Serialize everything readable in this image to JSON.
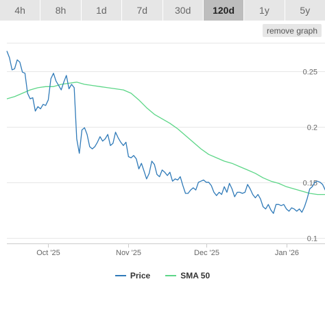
{
  "tabs": [
    {
      "label": "4h",
      "active": false
    },
    {
      "label": "8h",
      "active": false
    },
    {
      "label": "1d",
      "active": false
    },
    {
      "label": "7d",
      "active": false
    },
    {
      "label": "30d",
      "active": false
    },
    {
      "label": "120d",
      "active": true
    },
    {
      "label": "1y",
      "active": false
    },
    {
      "label": "5y",
      "active": false
    }
  ],
  "remove_graph_label": "remove graph",
  "chart_data": {
    "type": "line",
    "x_tick_labels": [
      "Oct '25",
      "Nov '25",
      "Dec '25",
      "Jan '26"
    ],
    "x_tick_dates": [
      "2025-10-01",
      "2025-11-01",
      "2025-12-01",
      "2026-01-01"
    ],
    "xlim": [
      "2025-09-15",
      "2026-01-13"
    ],
    "y_tick_labels": [
      "0.1",
      "0.15",
      "0.2",
      "0.25"
    ],
    "y_ticks": [
      0.1,
      0.15,
      0.2,
      0.25
    ],
    "ylim": [
      0.095,
      0.275
    ],
    "y_axis_side": "right",
    "grid": "horizontal",
    "legend_position": "bottom",
    "series": [
      {
        "name": "Price",
        "color": "#2f7ab8",
        "points": [
          [
            "2025-09-15",
            0.268
          ],
          [
            "2025-09-16",
            0.262
          ],
          [
            "2025-09-17",
            0.251
          ],
          [
            "2025-09-18",
            0.252
          ],
          [
            "2025-09-19",
            0.26
          ],
          [
            "2025-09-20",
            0.258
          ],
          [
            "2025-09-21",
            0.249
          ],
          [
            "2025-09-22",
            0.248
          ],
          [
            "2025-09-23",
            0.23
          ],
          [
            "2025-09-24",
            0.225
          ],
          [
            "2025-09-25",
            0.226
          ],
          [
            "2025-09-26",
            0.214
          ],
          [
            "2025-09-27",
            0.218
          ],
          [
            "2025-09-28",
            0.216
          ],
          [
            "2025-09-29",
            0.22
          ],
          [
            "2025-09-30",
            0.219
          ],
          [
            "2025-10-01",
            0.224
          ],
          [
            "2025-10-02",
            0.243
          ],
          [
            "2025-10-03",
            0.248
          ],
          [
            "2025-10-04",
            0.241
          ],
          [
            "2025-10-05",
            0.237
          ],
          [
            "2025-10-06",
            0.233
          ],
          [
            "2025-10-07",
            0.24
          ],
          [
            "2025-10-08",
            0.246
          ],
          [
            "2025-10-09",
            0.234
          ],
          [
            "2025-10-10",
            0.238
          ],
          [
            "2025-10-11",
            0.235
          ],
          [
            "2025-10-12",
            0.189
          ],
          [
            "2025-10-13",
            0.176
          ],
          [
            "2025-10-14",
            0.197
          ],
          [
            "2025-10-15",
            0.199
          ],
          [
            "2025-10-16",
            0.193
          ],
          [
            "2025-10-17",
            0.182
          ],
          [
            "2025-10-18",
            0.18
          ],
          [
            "2025-10-19",
            0.182
          ],
          [
            "2025-10-20",
            0.186
          ],
          [
            "2025-10-21",
            0.191
          ],
          [
            "2025-10-22",
            0.187
          ],
          [
            "2025-10-23",
            0.189
          ],
          [
            "2025-10-24",
            0.193
          ],
          [
            "2025-10-25",
            0.183
          ],
          [
            "2025-10-26",
            0.185
          ],
          [
            "2025-10-27",
            0.195
          ],
          [
            "2025-10-28",
            0.19
          ],
          [
            "2025-10-29",
            0.186
          ],
          [
            "2025-10-30",
            0.183
          ],
          [
            "2025-10-31",
            0.186
          ],
          [
            "2025-11-01",
            0.173
          ],
          [
            "2025-11-02",
            0.172
          ],
          [
            "2025-11-03",
            0.174
          ],
          [
            "2025-11-04",
            0.171
          ],
          [
            "2025-11-05",
            0.162
          ],
          [
            "2025-11-06",
            0.167
          ],
          [
            "2025-11-07",
            0.16
          ],
          [
            "2025-11-08",
            0.153
          ],
          [
            "2025-11-09",
            0.158
          ],
          [
            "2025-11-10",
            0.169
          ],
          [
            "2025-11-11",
            0.166
          ],
          [
            "2025-11-12",
            0.157
          ],
          [
            "2025-11-13",
            0.155
          ],
          [
            "2025-11-14",
            0.161
          ],
          [
            "2025-11-15",
            0.159
          ],
          [
            "2025-11-16",
            0.156
          ],
          [
            "2025-11-17",
            0.159
          ],
          [
            "2025-11-18",
            0.151
          ],
          [
            "2025-11-19",
            0.153
          ],
          [
            "2025-11-20",
            0.152
          ],
          [
            "2025-11-21",
            0.155
          ],
          [
            "2025-11-22",
            0.147
          ],
          [
            "2025-11-23",
            0.14
          ],
          [
            "2025-11-24",
            0.14
          ],
          [
            "2025-11-25",
            0.143
          ],
          [
            "2025-11-26",
            0.145
          ],
          [
            "2025-11-27",
            0.143
          ],
          [
            "2025-11-28",
            0.15
          ],
          [
            "2025-11-29",
            0.151
          ],
          [
            "2025-11-30",
            0.152
          ],
          [
            "2025-12-01",
            0.15
          ],
          [
            "2025-12-02",
            0.15
          ],
          [
            "2025-12-03",
            0.147
          ],
          [
            "2025-12-04",
            0.141
          ],
          [
            "2025-12-05",
            0.138
          ],
          [
            "2025-12-06",
            0.141
          ],
          [
            "2025-12-07",
            0.139
          ],
          [
            "2025-12-08",
            0.146
          ],
          [
            "2025-12-09",
            0.141
          ],
          [
            "2025-12-10",
            0.149
          ],
          [
            "2025-12-11",
            0.144
          ],
          [
            "2025-12-12",
            0.137
          ],
          [
            "2025-12-13",
            0.141
          ],
          [
            "2025-12-14",
            0.141
          ],
          [
            "2025-12-15",
            0.14
          ],
          [
            "2025-12-16",
            0.141
          ],
          [
            "2025-12-17",
            0.148
          ],
          [
            "2025-12-18",
            0.144
          ],
          [
            "2025-12-19",
            0.139
          ],
          [
            "2025-12-20",
            0.136
          ],
          [
            "2025-12-21",
            0.139
          ],
          [
            "2025-12-22",
            0.135
          ],
          [
            "2025-12-23",
            0.128
          ],
          [
            "2025-12-24",
            0.126
          ],
          [
            "2025-12-25",
            0.13
          ],
          [
            "2025-12-26",
            0.125
          ],
          [
            "2025-12-27",
            0.122
          ],
          [
            "2025-12-28",
            0.13
          ],
          [
            "2025-12-29",
            0.13
          ],
          [
            "2025-12-30",
            0.129
          ],
          [
            "2025-12-31",
            0.13
          ],
          [
            "2026-01-01",
            0.126
          ],
          [
            "2026-01-02",
            0.124
          ],
          [
            "2026-01-03",
            0.127
          ],
          [
            "2026-01-04",
            0.126
          ],
          [
            "2026-01-05",
            0.124
          ],
          [
            "2026-01-06",
            0.126
          ],
          [
            "2026-01-07",
            0.123
          ],
          [
            "2026-01-08",
            0.128
          ],
          [
            "2026-01-09",
            0.135
          ],
          [
            "2026-01-10",
            0.144
          ],
          [
            "2026-01-11",
            0.146
          ],
          [
            "2026-01-12",
            0.15
          ],
          [
            "2026-01-13",
            0.151
          ],
          [
            "2026-01-14",
            0.15
          ],
          [
            "2026-01-15",
            0.148
          ],
          [
            "2026-01-16",
            0.143
          ],
          [
            "2026-01-17",
            0.141
          ],
          [
            "2026-01-18",
            0.141
          ],
          [
            "2026-01-19",
            0.14
          ]
        ]
      },
      {
        "name": "SMA 50",
        "color": "#5cd687",
        "points": [
          [
            "2025-09-15",
            0.225
          ],
          [
            "2025-09-18",
            0.227
          ],
          [
            "2025-09-21",
            0.23
          ],
          [
            "2025-09-24",
            0.233
          ],
          [
            "2025-09-27",
            0.235
          ],
          [
            "2025-09-30",
            0.236
          ],
          [
            "2025-10-03",
            0.236
          ],
          [
            "2025-10-06",
            0.238
          ],
          [
            "2025-10-09",
            0.239
          ],
          [
            "2025-10-12",
            0.24
          ],
          [
            "2025-10-15",
            0.238
          ],
          [
            "2025-10-18",
            0.237
          ],
          [
            "2025-10-21",
            0.236
          ],
          [
            "2025-10-24",
            0.235
          ],
          [
            "2025-10-27",
            0.234
          ],
          [
            "2025-10-30",
            0.233
          ],
          [
            "2025-11-02",
            0.23
          ],
          [
            "2025-11-05",
            0.224
          ],
          [
            "2025-11-08",
            0.217
          ],
          [
            "2025-11-11",
            0.211
          ],
          [
            "2025-11-14",
            0.207
          ],
          [
            "2025-11-17",
            0.203
          ],
          [
            "2025-11-20",
            0.198
          ],
          [
            "2025-11-23",
            0.192
          ],
          [
            "2025-11-26",
            0.186
          ],
          [
            "2025-11-29",
            0.18
          ],
          [
            "2025-12-02",
            0.175
          ],
          [
            "2025-12-05",
            0.172
          ],
          [
            "2025-12-08",
            0.169
          ],
          [
            "2025-12-11",
            0.167
          ],
          [
            "2025-12-14",
            0.164
          ],
          [
            "2025-12-17",
            0.161
          ],
          [
            "2025-12-20",
            0.158
          ],
          [
            "2025-12-23",
            0.154
          ],
          [
            "2025-12-26",
            0.151
          ],
          [
            "2025-12-29",
            0.149
          ],
          [
            "2026-01-01",
            0.146
          ],
          [
            "2026-01-04",
            0.144
          ],
          [
            "2026-01-07",
            0.142
          ],
          [
            "2026-01-10",
            0.14
          ],
          [
            "2026-01-13",
            0.139
          ],
          [
            "2026-01-16",
            0.139
          ],
          [
            "2026-01-19",
            0.139
          ]
        ]
      }
    ]
  }
}
